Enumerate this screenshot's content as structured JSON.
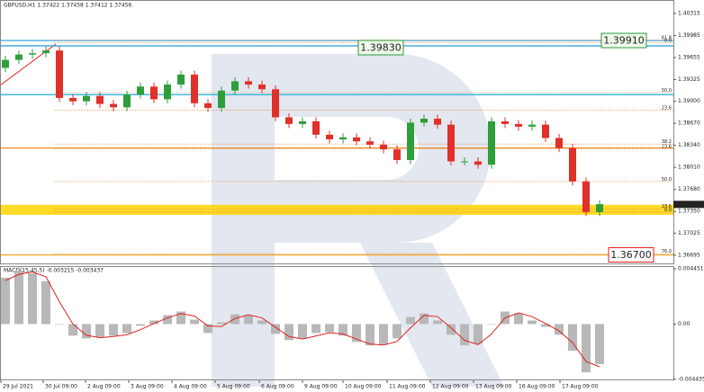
{
  "chart_data": [
    {
      "type": "candlestick",
      "title": "GBPUSD,H1 1.37422 1.37458 1.37412 1.37456",
      "open": [
        1.395,
        1.3962,
        1.397,
        1.3972,
        1.3976,
        1.3905,
        1.39,
        1.3908,
        1.3896,
        1.3891,
        1.391,
        1.3922,
        1.3903,
        1.3925,
        1.394,
        1.3897,
        1.389,
        1.3916,
        1.393,
        1.3925,
        1.3918,
        1.3876,
        1.3866,
        1.387,
        1.385,
        1.3843,
        1.3846,
        1.384,
        1.3835,
        1.3828,
        1.3812,
        1.3868,
        1.3874,
        1.3865,
        1.381,
        1.381,
        1.3805,
        1.387,
        1.3866,
        1.3862,
        1.3865,
        1.3845,
        1.383,
        1.378,
        1.3734
      ],
      "high": [
        1.3968,
        1.3976,
        1.3978,
        1.3982,
        1.3982,
        1.3911,
        1.3914,
        1.3914,
        1.3902,
        1.3916,
        1.3928,
        1.3928,
        1.3931,
        1.3946,
        1.3946,
        1.3903,
        1.3922,
        1.3936,
        1.3936,
        1.3931,
        1.3924,
        1.3882,
        1.3876,
        1.3876,
        1.3856,
        1.3852,
        1.3852,
        1.3846,
        1.3841,
        1.3834,
        1.3874,
        1.388,
        1.388,
        1.3871,
        1.3816,
        1.3816,
        1.3876,
        1.3876,
        1.3872,
        1.3871,
        1.3871,
        1.3851,
        1.3836,
        1.3786,
        1.3752
      ],
      "low": [
        1.3944,
        1.3956,
        1.3964,
        1.3966,
        1.3899,
        1.3894,
        1.3894,
        1.389,
        1.3885,
        1.3885,
        1.3904,
        1.3897,
        1.3897,
        1.3919,
        1.3891,
        1.3884,
        1.3884,
        1.391,
        1.3919,
        1.3912,
        1.387,
        1.386,
        1.386,
        1.3844,
        1.3837,
        1.3837,
        1.3834,
        1.3829,
        1.3822,
        1.3806,
        1.3806,
        1.3862,
        1.3859,
        1.3804,
        1.3804,
        1.3799,
        1.3799,
        1.386,
        1.3856,
        1.3856,
        1.3839,
        1.3824,
        1.3774,
        1.3728,
        1.3728
      ],
      "close": [
        1.3962,
        1.397,
        1.3972,
        1.3976,
        1.3905,
        1.39,
        1.3908,
        1.3896,
        1.3891,
        1.391,
        1.3922,
        1.3903,
        1.3925,
        1.394,
        1.3897,
        1.389,
        1.3916,
        1.393,
        1.3925,
        1.3918,
        1.3876,
        1.3866,
        1.387,
        1.385,
        1.3843,
        1.3846,
        1.384,
        1.3835,
        1.3828,
        1.3812,
        1.3868,
        1.3874,
        1.3865,
        1.381,
        1.381,
        1.3805,
        1.387,
        1.3866,
        1.3862,
        1.3865,
        1.3845,
        1.383,
        1.378,
        1.3734,
        1.3746
      ],
      "up_color": "#2e9e3a",
      "down_color": "#e0302a",
      "ylim": [
        1.36572,
        1.40503
      ],
      "yticks": [
        1.40315,
        1.39985,
        1.39655,
        1.39325,
        {
          "value": 1.39,
          "label": "1.39000"
        },
        {
          "value": 1.3867,
          "label": "1.38670"
        },
        {
          "value": 1.3834,
          "label": "1.38340"
        },
        {
          "value": 1.3801,
          "label": "1.38010"
        },
        {
          "value": 1.3768,
          "label": "1.37680"
        },
        {
          "value": 1.3735,
          "label": "1.37350"
        },
        1.37025,
        1.36695
      ],
      "x_labels": [
        "29 Jul 2021",
        "30 Jul 09:00",
        "2 Aug 09:00",
        "3 Aug 09:00",
        "4 Aug 09:00",
        "5 Aug 09:00",
        "6 Aug 09:00",
        "9 Aug 09:00",
        "10 Aug 09:00",
        "11 Aug 09:00",
        "12 Aug 09:00",
        "13 Aug 09:00",
        "16 Aug 09:00",
        "17 Aug 09:00"
      ],
      "zone": [
        1.373,
        1.3745
      ],
      "zone_color": "#ffd400",
      "lines": [
        {
          "value": 1.3991,
          "color": "#1e9ad6"
        },
        {
          "value": 1.3983,
          "color": "#1e9ad6"
        },
        {
          "value": 1.391,
          "color": "#1ab0d8"
        },
        {
          "value": 1.383,
          "color": "#f08a1e"
        },
        {
          "value": 1.367,
          "color": "#f0a01e"
        }
      ],
      "fib_levels": [
        {
          "value": 1.39915,
          "label": "61.8"
        },
        {
          "value": 1.3988,
          "label": "0.0"
        },
        {
          "value": 1.3913,
          "label": "50.0"
        },
        {
          "value": 1.38866,
          "label": "23.6"
        },
        {
          "value": 1.3836,
          "label": "38.2"
        },
        {
          "value": 1.3829,
          "label": "23.6"
        },
        {
          "value": 1.378,
          "label": "50.0"
        },
        {
          "value": 1.3739,
          "label": "23.6"
        },
        {
          "value": 1.3734,
          "label": "0.0"
        },
        {
          "value": 1.3672,
          "label": "76.0"
        }
      ],
      "fib_color": "#e8803a",
      "price_boxes": [
        {
          "value": 1.3983,
          "label": "1.39830",
          "color": "#2a9a3a"
        },
        {
          "value": 1.3991,
          "label": "1.39910",
          "color": "#2a9a3a"
        },
        {
          "value": 1.367,
          "label": "1.36700",
          "color": "#e02020"
        }
      ],
      "last_price": 1.37456
    },
    {
      "type": "macd",
      "title": "MACD(15,45,5) -0.003215 -0.003437",
      "histogram": [
        0.00373,
        0.00431,
        0.00409,
        0.00345,
        0.0,
        -0.00093,
        -0.00115,
        -0.00108,
        -0.00093,
        -0.00072,
        -0.00014,
        0.00029,
        0.00072,
        0.00101,
        0.00036,
        -0.00072,
        0.00014,
        0.00079,
        0.00072,
        0.00029,
        -0.00079,
        -0.00129,
        -0.00115,
        -0.00072,
        -0.00065,
        -0.00093,
        -0.00144,
        -0.00172,
        -0.00165,
        -0.00115,
        0.00057,
        0.00086,
        0.00029,
        -0.00086,
        -0.00172,
        -0.00158,
        0.0,
        0.00101,
        0.00086,
        0.00029,
        -0.00022,
        -0.00086,
        -0.00215,
        -0.00388,
        -0.003215
      ],
      "signal": [
        0.0035,
        0.004,
        0.0042,
        0.0038,
        0.0018,
        0.0,
        -0.0009,
        -0.0011,
        -0.001,
        -0.00085,
        -0.00045,
        5e-05,
        0.0005,
        0.00085,
        0.00065,
        -0.00015,
        -0.0002,
        0.00045,
        0.00075,
        0.0005,
        -0.00025,
        -0.001,
        -0.0012,
        -0.00095,
        -0.0007,
        -0.0008,
        -0.0012,
        -0.0016,
        -0.00168,
        -0.0014,
        -0.0003,
        0.0007,
        0.0006,
        -0.0003,
        -0.0013,
        -0.00165,
        -0.0008,
        0.0005,
        0.0009,
        0.0006,
        5e-05,
        -0.00055,
        -0.0015,
        -0.003,
        -0.003437
      ],
      "histogram_color": "#b8b8b8",
      "signal_color": "#e02020",
      "ylim": [
        -0.00445,
        0.00459
      ],
      "yticks": [
        0.004451,
        {
          "value": 0,
          "label": "0.00"
        },
        -0.004435
      ]
    }
  ]
}
